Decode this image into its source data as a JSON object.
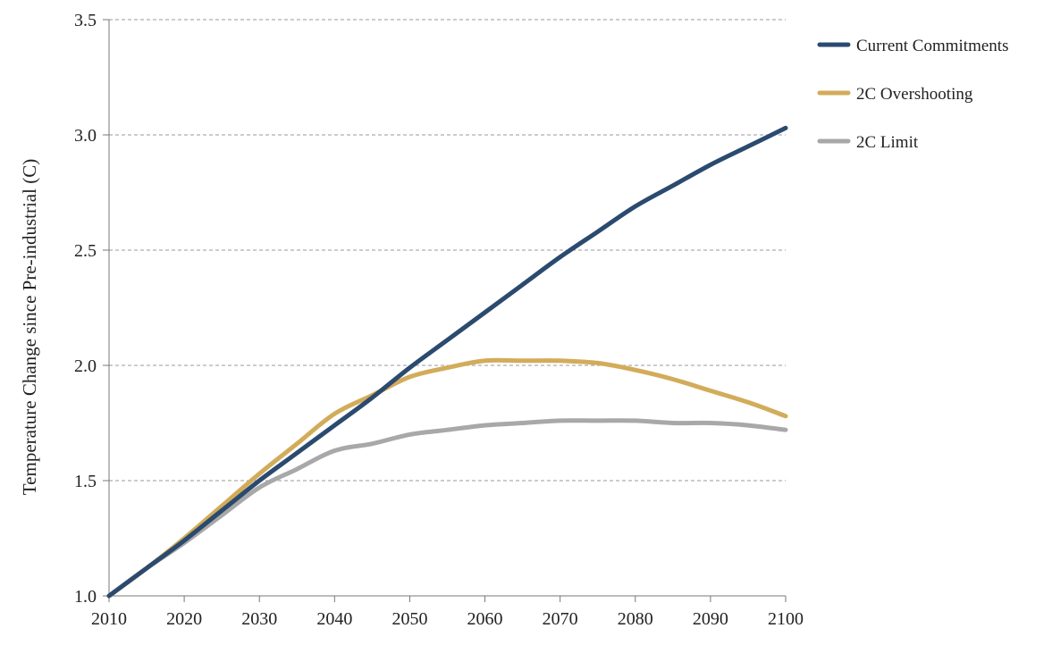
{
  "chart_data": {
    "type": "line",
    "title": "",
    "xlabel": "",
    "ylabel": "Temperature Change since Pre-industrial (C)",
    "xlim": [
      2010,
      2100
    ],
    "ylim": [
      1.0,
      3.5
    ],
    "x_ticks": [
      2010,
      2020,
      2030,
      2040,
      2050,
      2060,
      2070,
      2080,
      2090,
      2100
    ],
    "y_ticks": [
      1.0,
      1.5,
      2.0,
      2.5,
      3.0,
      3.5
    ],
    "y_tick_labels": [
      "1.0",
      "1.5",
      "2.0",
      "2.5",
      "3.0",
      "3.5"
    ],
    "grid": "horizontal dashed",
    "legend_position": "right",
    "x": [
      2010,
      2015,
      2020,
      2025,
      2030,
      2035,
      2040,
      2045,
      2050,
      2055,
      2060,
      2065,
      2070,
      2075,
      2080,
      2085,
      2090,
      2095,
      2100
    ],
    "series": [
      {
        "name": "Current Commitments",
        "color": "#2b4a6f",
        "values": [
          1.0,
          1.12,
          1.24,
          1.37,
          1.5,
          1.62,
          1.74,
          1.86,
          1.99,
          2.11,
          2.23,
          2.35,
          2.47,
          2.58,
          2.69,
          2.78,
          2.87,
          2.95,
          3.03
        ]
      },
      {
        "name": "2C Overshooting",
        "color": "#d2ac5a",
        "values": [
          1.0,
          1.12,
          1.25,
          1.39,
          1.53,
          1.66,
          1.79,
          1.87,
          1.95,
          1.99,
          2.02,
          2.02,
          2.02,
          2.01,
          1.98,
          1.94,
          1.89,
          1.84,
          1.78
        ]
      },
      {
        "name": "2C Limit",
        "color": "#a8a8a8",
        "values": [
          1.0,
          1.12,
          1.23,
          1.35,
          1.47,
          1.55,
          1.63,
          1.66,
          1.7,
          1.72,
          1.74,
          1.75,
          1.76,
          1.76,
          1.76,
          1.75,
          1.75,
          1.74,
          1.72
        ]
      }
    ]
  }
}
